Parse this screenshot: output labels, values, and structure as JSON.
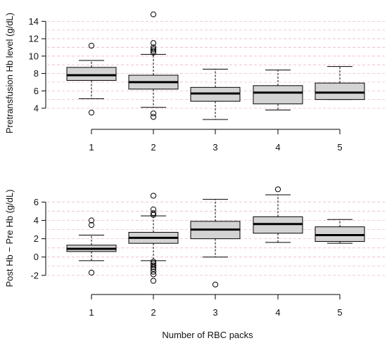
{
  "colors": {
    "box_fill": "#d3d3d3",
    "stroke": "#000000",
    "grid": "#f0b8c8",
    "background": "#ffffff"
  },
  "chart_data": [
    {
      "type": "box",
      "title": "",
      "xlabel": "",
      "ylabel": "Pretransfusion Hb level (g/dL)",
      "categories": [
        "1",
        "2",
        "3",
        "4",
        "5"
      ],
      "yticks": [
        4,
        6,
        8,
        10,
        12,
        14
      ],
      "ylim": [
        2.3,
        15.0
      ],
      "grid": true,
      "grid_lines": [
        4,
        5,
        6,
        7,
        8,
        9,
        10,
        11,
        12,
        13,
        14
      ],
      "boxes": [
        {
          "category": "1",
          "whisker_low": 5.1,
          "q1": 7.2,
          "median": 7.8,
          "q3": 8.7,
          "whisker_high": 9.5,
          "outliers": [
            11.2,
            3.5
          ]
        },
        {
          "category": "2",
          "whisker_low": 4.1,
          "q1": 6.2,
          "median": 7.0,
          "q3": 7.8,
          "whisker_high": 10.2,
          "outliers": [
            10.4,
            10.6,
            10.8,
            11.0,
            11.5,
            14.8,
            3.4,
            3.0
          ]
        },
        {
          "category": "3",
          "whisker_low": 2.7,
          "q1": 4.8,
          "median": 5.7,
          "q3": 6.4,
          "whisker_high": 8.5,
          "outliers": []
        },
        {
          "category": "4",
          "whisker_low": 3.8,
          "q1": 4.5,
          "median": 5.8,
          "q3": 6.6,
          "whisker_high": 8.4,
          "outliers": []
        },
        {
          "category": "5",
          "whisker_low": 5.0,
          "q1": 5.0,
          "median": 5.8,
          "q3": 6.9,
          "whisker_high": 8.8,
          "outliers": []
        }
      ]
    },
    {
      "type": "box",
      "title": "",
      "xlabel": "Number of RBC packs",
      "ylabel": "Post Hb − Pre Hb (g/dL)",
      "categories": [
        "1",
        "2",
        "3",
        "4",
        "5"
      ],
      "yticks": [
        -2,
        0,
        2,
        4,
        6
      ],
      "ylim": [
        -3.4,
        7.5
      ],
      "grid": true,
      "grid_lines": [
        -2,
        -1,
        0,
        1,
        2,
        3,
        4,
        5,
        6
      ],
      "boxes": [
        {
          "category": "1",
          "whisker_low": -0.4,
          "q1": 0.6,
          "median": 0.9,
          "q3": 1.3,
          "whisker_high": 2.4,
          "outliers": [
            4.0,
            3.5,
            -1.7
          ]
        },
        {
          "category": "2",
          "whisker_low": -0.4,
          "q1": 1.5,
          "median": 2.1,
          "q3": 2.7,
          "whisker_high": 4.5,
          "outliers": [
            4.6,
            4.8,
            5.2,
            6.7,
            -0.5,
            -0.7,
            -0.9,
            -1.1,
            -1.3,
            -1.6,
            -1.9,
            -2.6
          ]
        },
        {
          "category": "3",
          "whisker_low": 0.0,
          "q1": 2.0,
          "median": 3.0,
          "q3": 3.9,
          "whisker_high": 6.3,
          "outliers": [
            -3.0
          ]
        },
        {
          "category": "4",
          "whisker_low": 1.6,
          "q1": 2.6,
          "median": 3.6,
          "q3": 4.4,
          "whisker_high": 6.8,
          "outliers": [
            7.4
          ]
        },
        {
          "category": "5",
          "whisker_low": 1.5,
          "q1": 1.7,
          "median": 2.4,
          "q3": 3.3,
          "whisker_high": 4.1,
          "outliers": []
        }
      ]
    }
  ]
}
